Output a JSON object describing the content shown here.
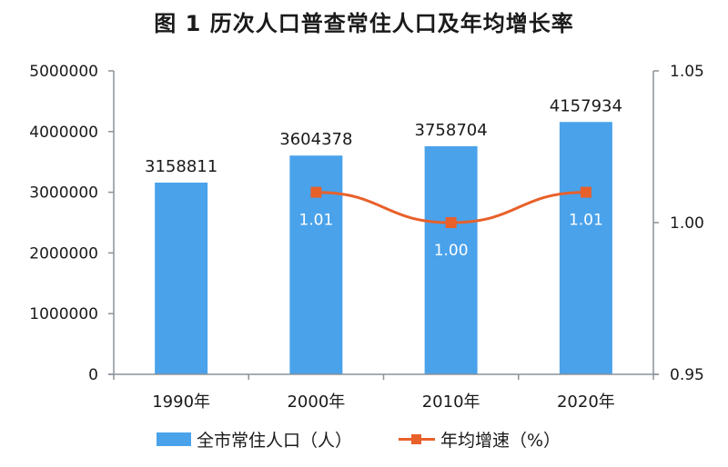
{
  "title": "图 1   历次人口普查常住人口及年均增长率",
  "chart_data": {
    "type": "bar+line",
    "title": "图 1 历次人口普查常住人口及年均增长率",
    "categories": [
      "1990年",
      "2000年",
      "2010年",
      "2020年"
    ],
    "series": [
      {
        "name": "全市常住人口（人）",
        "type": "bar",
        "axis": "left",
        "color": "#4aa2eb",
        "values": [
          3158811,
          3604378,
          3758704,
          4157934
        ],
        "labels": [
          "3158811",
          "3604378",
          "3758704",
          "4157934"
        ]
      },
      {
        "name": "年均增速（%）",
        "type": "line",
        "axis": "right",
        "color": "#e8602a",
        "values": [
          null,
          1.01,
          1.0,
          1.01
        ],
        "labels": [
          "",
          "1.01",
          "1.00",
          "1.01"
        ]
      }
    ],
    "left_axis": {
      "ylim": [
        0,
        5000000
      ],
      "ticks": [
        "0",
        "1000000",
        "2000000",
        "3000000",
        "4000000",
        "5000000"
      ]
    },
    "right_axis": {
      "ylim": [
        0.95,
        1.05
      ],
      "ticks": [
        "0.95",
        "1.00",
        "1.05"
      ]
    },
    "xlabel": "",
    "ylabel": "",
    "grid": false,
    "legend_position": "bottom"
  },
  "legend": {
    "bar_label": "全市常住人口（人）",
    "line_label": "年均增速（%）"
  }
}
